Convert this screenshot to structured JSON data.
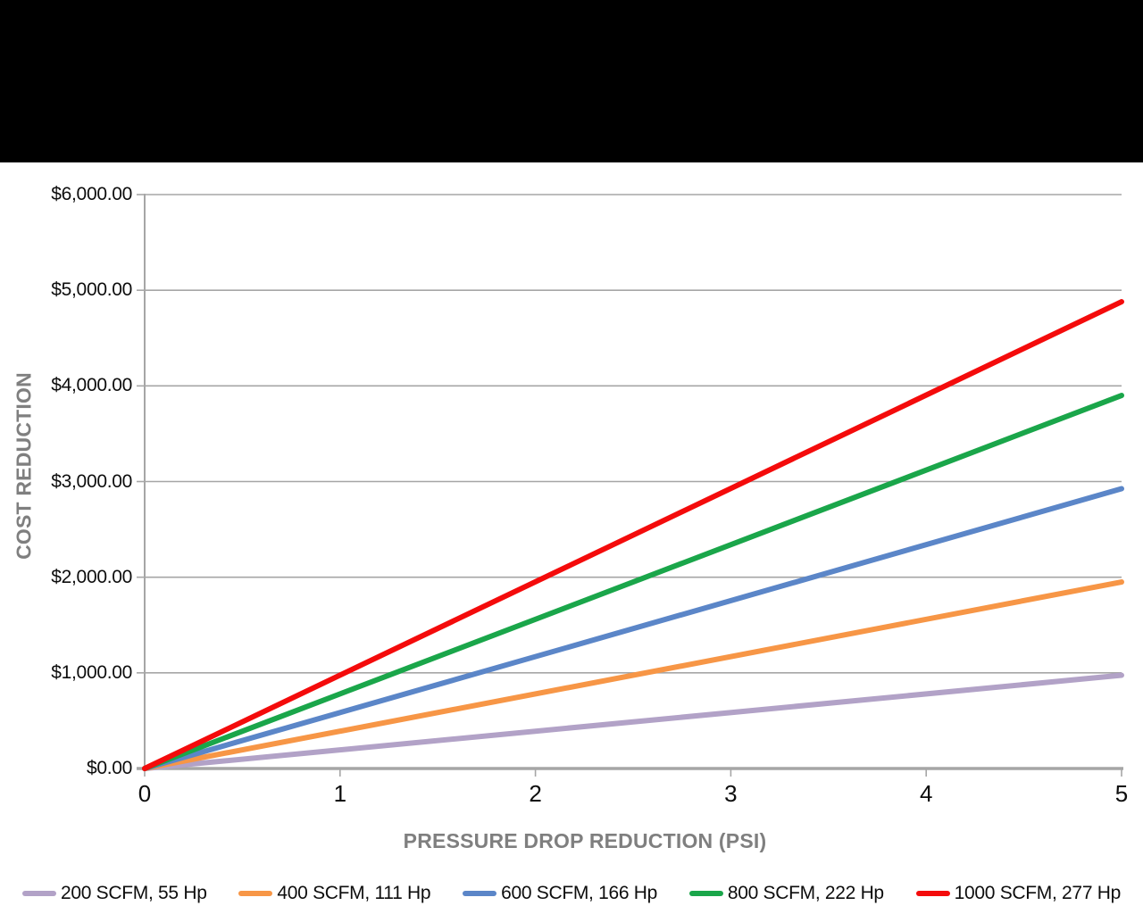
{
  "page": {
    "top_band_color": "#000000",
    "background_color": "#ffffff"
  },
  "chart_data": {
    "type": "line",
    "title": "",
    "xlabel": "PRESSURE DROP REDUCTION (PSI)",
    "ylabel": "COST REDUCTION",
    "xlim": [
      0,
      5
    ],
    "ylim": [
      0,
      6000
    ],
    "grid": "horizontal",
    "legend_position": "bottom",
    "axis_color": "#a6a6a6",
    "gridline_color": "#a6a6a6",
    "tick_label_color": "#0d0d0d",
    "axis_title_color": "#7f7f7f",
    "x_ticks": [
      {
        "value": 0,
        "label": "0"
      },
      {
        "value": 1,
        "label": "1"
      },
      {
        "value": 2,
        "label": "2"
      },
      {
        "value": 3,
        "label": "3"
      },
      {
        "value": 4,
        "label": "4"
      },
      {
        "value": 5,
        "label": "5"
      }
    ],
    "y_ticks": [
      {
        "value": 0,
        "label": "$0.00"
      },
      {
        "value": 1000,
        "label": "$1,000.00"
      },
      {
        "value": 2000,
        "label": "$2,000.00"
      },
      {
        "value": 3000,
        "label": "$3,000.00"
      },
      {
        "value": 4000,
        "label": "$4,000.00"
      },
      {
        "value": 5000,
        "label": "$5,000.00"
      },
      {
        "value": 6000,
        "label": "$6,000.00"
      }
    ],
    "series": [
      {
        "name": "200 SCFM, 55 Hp",
        "color": "#b2a2c7",
        "x": [
          0,
          5
        ],
        "y": [
          0,
          975
        ]
      },
      {
        "name": "400 SCFM, 111 Hp",
        "color": "#f79646",
        "x": [
          0,
          5
        ],
        "y": [
          0,
          1950
        ]
      },
      {
        "name": "600 SCFM, 166 Hp",
        "color": "#5b86c8",
        "x": [
          0,
          5
        ],
        "y": [
          0,
          2925
        ]
      },
      {
        "name": "800 SCFM, 222 Hp",
        "color": "#1aa64a",
        "x": [
          0,
          5
        ],
        "y": [
          0,
          3900
        ]
      },
      {
        "name": "1000 SCFM, 277 Hp",
        "color": "#f40b0b",
        "x": [
          0,
          5
        ],
        "y": [
          0,
          4880
        ]
      }
    ]
  }
}
